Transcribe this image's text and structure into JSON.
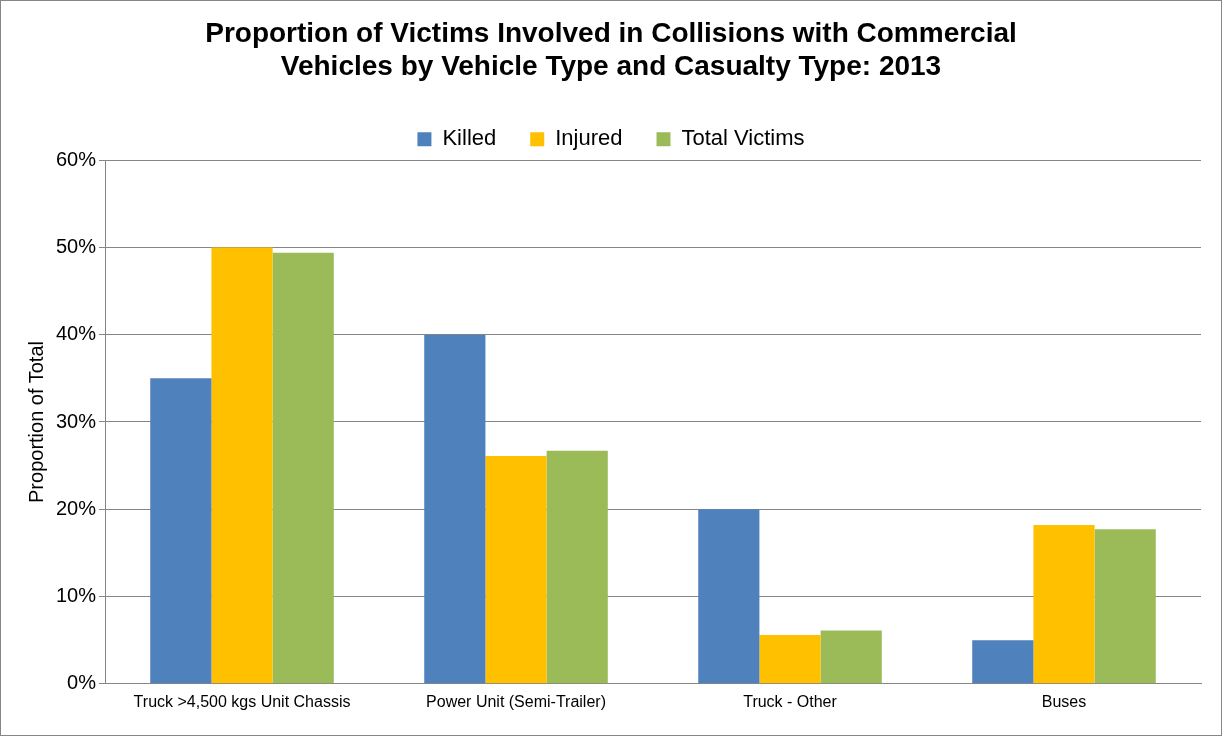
{
  "chart_data": {
    "type": "bar",
    "title": "Proportion of Victims Involved in Collisions with Commercial Vehicles by Vehicle Type and Casualty Type: 2013",
    "ylabel": "Proportion of Total",
    "categories": [
      "Truck >4,500 kgs Unit Chassis",
      "Power Unit (Semi-Trailer)",
      "Truck - Other",
      "Buses"
    ],
    "series": [
      {
        "name": "Killed",
        "color": "#4f81bd",
        "values": [
          35,
          40,
          20,
          5
        ]
      },
      {
        "name": "Injured",
        "color": "#ffc000",
        "values": [
          50,
          26.1,
          5.6,
          18.2
        ]
      },
      {
        "name": "Total Victims",
        "color": "#9bbb59",
        "values": [
          49.4,
          26.7,
          6.1,
          17.7
        ]
      }
    ],
    "ylim": [
      0,
      60
    ],
    "yticks": [
      {
        "value": 0,
        "label": "0%"
      },
      {
        "value": 10,
        "label": "10%"
      },
      {
        "value": 20,
        "label": "20%"
      },
      {
        "value": 30,
        "label": "30%"
      },
      {
        "value": 40,
        "label": "40%"
      },
      {
        "value": 50,
        "label": "50%"
      },
      {
        "value": 60,
        "label": "60%"
      }
    ],
    "grid": "y",
    "legend": "top"
  }
}
